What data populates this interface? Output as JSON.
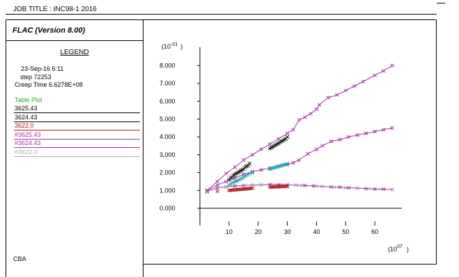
{
  "header": {
    "job_title": "JOB TITLE : INC98-1  2016"
  },
  "panel": {
    "program": "FLAC (Version 8.00)",
    "legend_title": "LEGEND",
    "date_line": "23-Sep-16  6:11",
    "step_line": "step   72253",
    "creep_line": "Creep Time    6.6278E+08",
    "table_plot_label": "Table Plot",
    "footer": "CBA",
    "table_rows": [
      {
        "label": "3625.43",
        "color": "#000000",
        "bar_color": "#000000"
      },
      {
        "label": "3624.43",
        "color": "#000000",
        "bar_color": "#000000"
      },
      {
        "label": "3622.0",
        "color": "#b4161b",
        "bar_color": "#b4161b"
      },
      {
        "label": "#3625.43",
        "color": "#a033a0",
        "bar_color": "#a033a0"
      },
      {
        "label": "#3624.43",
        "color": "#a033a0",
        "bar_color": "#a033a0"
      },
      {
        "label": "#3622.0",
        "color": "#b0b0b0",
        "bar_color": "#b0b0b0"
      }
    ],
    "colors": {
      "table_plot": "#22aa22"
    }
  },
  "chart_data": {
    "type": "line",
    "y_scale_label": "(10",
    "y_scale_exp": "-01",
    "y_scale_close": ")",
    "x_scale_label": "(10",
    "x_scale_exp": "07",
    "x_scale_close": ")",
    "xlim": [
      0,
      70
    ],
    "ylim": [
      -1.0,
      8.7
    ],
    "x_ticks": [
      10,
      20,
      30,
      40,
      50,
      60
    ],
    "y_ticks": [
      0,
      1,
      2,
      3,
      4,
      5,
      6,
      7,
      8
    ],
    "y_tick_labels": [
      "0.000",
      "1.000",
      "2.000",
      "3.000",
      "4.000",
      "5.000",
      "6.000",
      "7.000",
      "8.000"
    ],
    "series": [
      {
        "color": "#a033a0",
        "line": true,
        "x": [
          2.5,
          6,
          9,
          12,
          15,
          18,
          21,
          24,
          27,
          30,
          32,
          34,
          36,
          38,
          40,
          41,
          44,
          47,
          50,
          53,
          56,
          60,
          63,
          66
        ],
        "y": [
          1.0,
          1.5,
          1.95,
          2.3,
          2.7,
          3.0,
          3.3,
          3.6,
          3.9,
          4.2,
          4.4,
          4.95,
          5.1,
          5.3,
          5.55,
          5.8,
          6.2,
          6.35,
          6.6,
          6.85,
          7.1,
          7.45,
          7.7,
          8.0
        ]
      },
      {
        "color": "#a033a0",
        "line": true,
        "x": [
          2.5,
          6,
          9,
          12,
          15,
          18,
          21,
          24,
          27,
          30,
          32,
          34,
          37,
          40,
          42,
          45,
          48,
          51,
          54,
          57,
          60,
          63,
          66
        ],
        "y": [
          1.0,
          1.3,
          1.5,
          1.7,
          1.9,
          2.05,
          2.15,
          2.25,
          2.35,
          2.45,
          2.55,
          2.7,
          3.05,
          3.3,
          3.5,
          3.75,
          3.85,
          4.0,
          4.1,
          4.2,
          4.3,
          4.4,
          4.5
        ]
      },
      {
        "color": "#a033a0",
        "line": true,
        "x": [
          2.5,
          6,
          9,
          12,
          15,
          18,
          21,
          24,
          27,
          30,
          33,
          36,
          39,
          42,
          45,
          48,
          51,
          54,
          57,
          60,
          63,
          66
        ],
        "y": [
          0.95,
          1.15,
          1.2,
          1.25,
          1.28,
          1.3,
          1.32,
          1.33,
          1.33,
          1.32,
          1.3,
          1.28,
          1.25,
          1.22,
          1.2,
          1.18,
          1.15,
          1.13,
          1.1,
          1.08,
          1.07,
          1.05
        ]
      },
      {
        "color": "#b0b0b0",
        "line": false,
        "x": [
          2.5,
          6,
          9,
          15,
          18,
          21,
          25,
          28,
          33,
          35,
          40,
          42,
          46,
          50,
          54,
          58,
          62,
          66
        ],
        "y": [
          0.9,
          1.1,
          1.2,
          1.25,
          1.3,
          1.32,
          1.33,
          1.32,
          1.3,
          1.28,
          1.25,
          1.22,
          1.18,
          1.15,
          1.12,
          1.1,
          1.08,
          1.05
        ]
      },
      {
        "color": "#000000",
        "line": false,
        "x": [
          10,
          10.5,
          11,
          11.5,
          12,
          12.5,
          13,
          13.5,
          14,
          14.5,
          15,
          15.5,
          16,
          16.5,
          17,
          24,
          24.5,
          25,
          25.5,
          26,
          26.5,
          27,
          27.5,
          28,
          28.5,
          29,
          29.5,
          30
        ],
        "y": [
          1.6,
          1.7,
          1.75,
          1.85,
          1.9,
          1.95,
          2.0,
          2.05,
          2.1,
          2.15,
          2.2,
          2.3,
          2.35,
          2.4,
          2.5,
          3.35,
          3.4,
          3.45,
          3.5,
          3.55,
          3.6,
          3.65,
          3.7,
          3.75,
          3.8,
          3.85,
          3.9,
          4.0
        ]
      },
      {
        "color": "#22a6b3",
        "line": false,
        "x": [
          10,
          10.5,
          11,
          11.5,
          12,
          12.5,
          13,
          13.5,
          14,
          14.5,
          15,
          15.5,
          16,
          16.5,
          17,
          18,
          24,
          24.5,
          25,
          25.5,
          26,
          26.5,
          27,
          27.5,
          28,
          28.5,
          29,
          29.5,
          30
        ],
        "y": [
          1.3,
          1.35,
          1.4,
          1.45,
          1.5,
          1.52,
          1.55,
          1.6,
          1.65,
          1.7,
          1.75,
          1.8,
          1.85,
          1.9,
          1.95,
          2.0,
          2.2,
          2.22,
          2.25,
          2.28,
          2.3,
          2.32,
          2.35,
          2.37,
          2.4,
          2.42,
          2.45,
          2.45,
          2.5
        ]
      },
      {
        "color": "#b4161b",
        "line": false,
        "x": [
          6,
          10,
          10.5,
          11,
          11.5,
          12,
          12.5,
          13,
          13.5,
          14,
          14.5,
          15,
          15.5,
          16,
          16.5,
          17,
          17.5,
          18,
          24,
          24.5,
          25,
          25.5,
          26,
          26.5,
          27,
          27.5,
          28,
          28.5,
          29,
          29.5,
          30
        ],
        "y": [
          0.95,
          1.0,
          1.0,
          1.02,
          1.03,
          1.03,
          1.04,
          1.05,
          1.05,
          1.06,
          1.07,
          1.08,
          1.08,
          1.09,
          1.1,
          1.1,
          1.12,
          1.12,
          1.18,
          1.18,
          1.19,
          1.2,
          1.2,
          1.2,
          1.21,
          1.21,
          1.22,
          1.22,
          1.22,
          1.23,
          1.23
        ]
      }
    ]
  }
}
